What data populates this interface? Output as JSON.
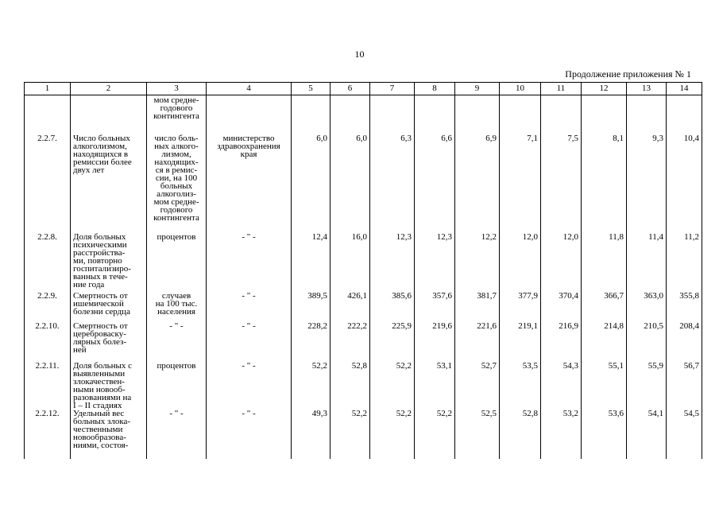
{
  "page": {
    "number": "10",
    "continuation": "Продолжение приложения № 1"
  },
  "table": {
    "header": [
      "1",
      "2",
      "3",
      "4",
      "5",
      "6",
      "7",
      "8",
      "9",
      "10",
      "11",
      "12",
      "13",
      "14"
    ],
    "continuation_row": {
      "unit": "мом средне-\nгодового\nконтингента"
    },
    "rows": [
      {
        "num": "2.2.7.",
        "name": "Число больных\nалкоголизмом,\nнаходящихся в\nремиссии более\nдвух лет",
        "unit": "число боль-\nных алкого-\nлизмом,\nнаходящих-\nся в ремис-\nсии, на 100\nбольных\nалкоголиз-\nмом средне-\nгодового\nконтингента",
        "source": "министерство\nздравоохранения\nкрая",
        "values": [
          "6,0",
          "6,0",
          "6,3",
          "6,6",
          "6,9",
          "7,1",
          "7,5",
          "8,1",
          "9,3",
          "10,4"
        ]
      },
      {
        "num": "2.2.8.",
        "name": "Доля больных\nпсихическими\nрасстройства-\nми, повторно\nгоспитализиро-\nванных в тече-\nние года",
        "unit": "процентов",
        "source": "- \" -",
        "values": [
          "12,4",
          "16,0",
          "12,3",
          "12,3",
          "12,2",
          "12,0",
          "12,0",
          "11,8",
          "11,4",
          "11,2"
        ]
      },
      {
        "num": "2.2.9.",
        "name": "Смертность от\nишемической\nболезни сердца",
        "unit": "случаев\nна 100 тыс.\nнаселения",
        "source": "- \" -",
        "values": [
          "389,5",
          "426,1",
          "385,6",
          "357,6",
          "381,7",
          "377,9",
          "370,4",
          "366,7",
          "363,0",
          "355,8"
        ]
      },
      {
        "num": "2.2.10.",
        "name": "Смертность от\nцереброваску-\nлярных болез-\nней",
        "unit": "- \" -",
        "source": "- \" -",
        "values": [
          "228,2",
          "222,2",
          "225,9",
          "219,6",
          "221,6",
          "219,1",
          "216,9",
          "214,8",
          "210,5",
          "208,4"
        ]
      },
      {
        "num": "2.2.11.",
        "name": "Доля больных с\nвыявленными\nзлокачествен-\nными новооб-\nразованиями на\nI – II стадиях",
        "unit": "процентов",
        "source": "- \" -",
        "values": [
          "52,2",
          "52,8",
          "52,2",
          "53,1",
          "52,7",
          "53,5",
          "54,3",
          "55,1",
          "55,9",
          "56,7"
        ]
      },
      {
        "num": "2.2.12.",
        "name": "Удельный вес\nбольных злока-\nчественными\nновообразова-\nниями, состоя-",
        "unit": "- \" -",
        "source": "- \" -",
        "values": [
          "49,3",
          "52,2",
          "52,2",
          "52,2",
          "52,5",
          "52,8",
          "53,2",
          "53,6",
          "54,1",
          "54,5"
        ]
      }
    ]
  }
}
